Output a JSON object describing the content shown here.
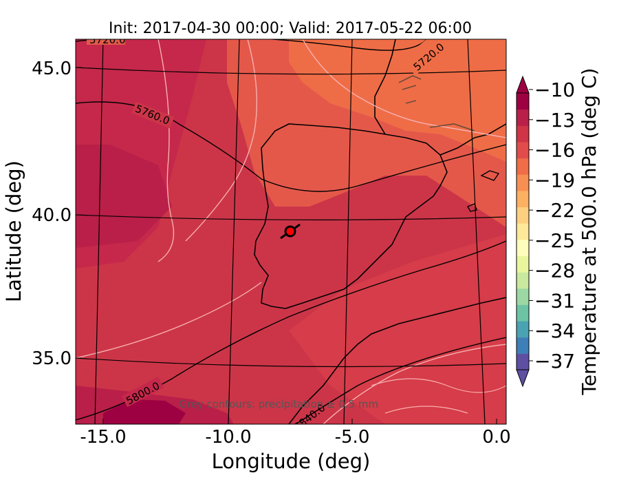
{
  "title": "Init: 2017-04-30 00:00; Valid: 2017-05-22 06:00",
  "axes": {
    "xlabel": "Longitude (deg)",
    "ylabel": "Latitude (deg)",
    "xticks": [
      "-15.0",
      "-10.0",
      "-5.0",
      "0.0"
    ],
    "yticks": [
      "45.0",
      "40.0",
      "35.0"
    ]
  },
  "colorbar": {
    "label": "Temperature at 500.0 hPa (deg C)",
    "ticks": [
      "−10",
      "−13",
      "−16",
      "−19",
      "−22",
      "−25",
      "−28",
      "−31",
      "−34",
      "−37"
    ],
    "colors": [
      "#5e4fa2",
      "#3f7fb8",
      "#4aa3b2",
      "#6cc4a5",
      "#9cd8a4",
      "#c8e99e",
      "#eaf69e",
      "#fffdbc",
      "#fee99a",
      "#fdd07f",
      "#fbb062",
      "#f88f52",
      "#f06d47",
      "#e14c4a",
      "#cf3546",
      "#b91f48",
      "#9e0142"
    ]
  },
  "contour_labels": [
    "5720.0",
    "5720.0",
    "5760.0",
    "5800.0",
    "5840.0"
  ],
  "note": "Grey contours: precipitation ≥ 0.5 mm",
  "marker": {
    "label": "station-marker",
    "color": "#ff0000"
  }
}
